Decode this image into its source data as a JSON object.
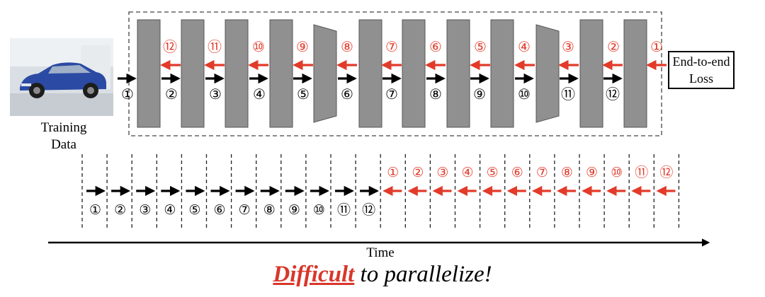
{
  "labels": {
    "training_data": "Training\nData",
    "loss": "End-to-end\nLoss",
    "time_axis": "Time",
    "caption_highlight": "Difficult",
    "caption_rest": " to parallelize!"
  },
  "forward_steps": [
    "①",
    "②",
    "③",
    "④",
    "⑤",
    "⑥",
    "⑦",
    "⑧",
    "⑨",
    "⑩",
    "⑪",
    "⑫"
  ],
  "backward_steps": [
    "①",
    "②",
    "③",
    "④",
    "⑤",
    "⑥",
    "⑦",
    "⑧",
    "⑨",
    "⑩",
    "⑪",
    "⑫"
  ],
  "colors": {
    "block": "#909090",
    "forward_arrow": "#000000",
    "backward_arrow": "#e23b2a",
    "backward_label": "#e23b2a"
  },
  "icons": {
    "photo": "car-photo-icon"
  }
}
